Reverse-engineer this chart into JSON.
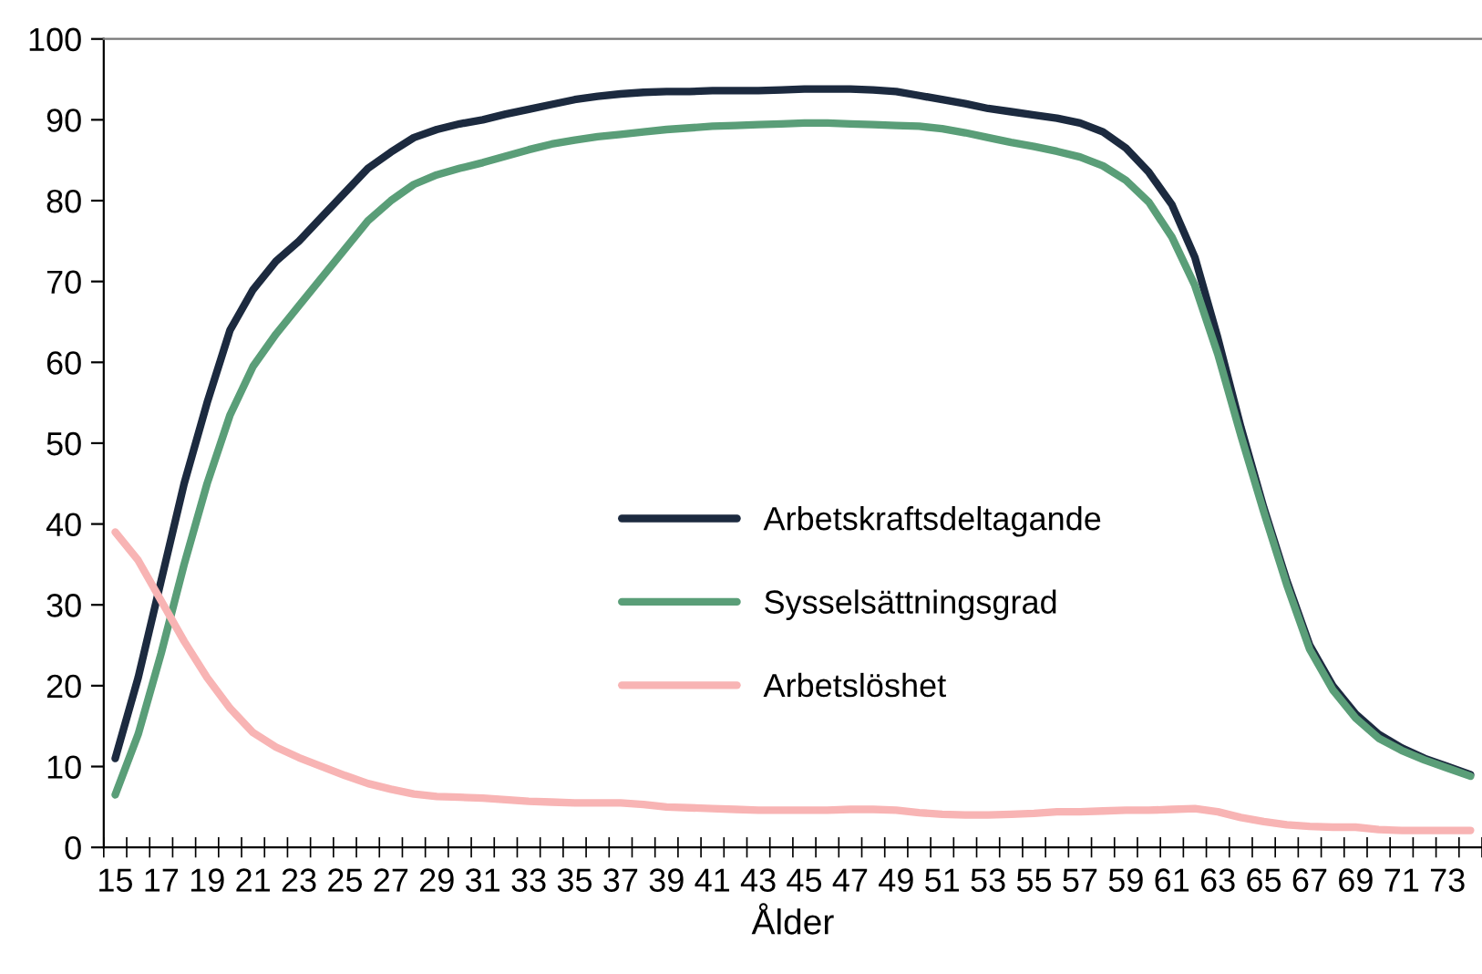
{
  "chart_data": {
    "type": "line",
    "xlabel": "Ålder",
    "categories": [
      "15",
      null,
      "17",
      null,
      "19",
      null,
      "21",
      null,
      "23",
      null,
      "25",
      null,
      "27",
      null,
      "29",
      null,
      "31",
      null,
      "33",
      null,
      "35",
      null,
      "37",
      null,
      "39",
      null,
      "41",
      null,
      "43",
      null,
      "45",
      null,
      "47",
      null,
      "49",
      null,
      "51",
      null,
      "53",
      null,
      "55",
      null,
      "57",
      null,
      "59",
      null,
      "61",
      null,
      "63",
      null,
      "65",
      null,
      "67",
      null,
      "69",
      null,
      "71",
      null,
      "73",
      null
    ],
    "series": [
      {
        "name": "Arbetskraftsdeltagande",
        "color": "#1c2a3f",
        "values": [
          11,
          21,
          33,
          45,
          55,
          64,
          69,
          72.5,
          75,
          78,
          81,
          84,
          86,
          87.8,
          88.8,
          89.5,
          90,
          90.7,
          91.3,
          91.9,
          92.5,
          92.9,
          93.2,
          93.4,
          93.5,
          93.5,
          93.6,
          93.6,
          93.6,
          93.7,
          93.8,
          93.8,
          93.8,
          93.7,
          93.5,
          93,
          92.5,
          92,
          91.4,
          91,
          90.6,
          90.2,
          89.6,
          88.5,
          86.5,
          83.5,
          79.5,
          73,
          63,
          52,
          42,
          33,
          25,
          20,
          16.5,
          14,
          12.3,
          11,
          10,
          9
        ]
      },
      {
        "name": "Sysselsättningsgrad",
        "color": "#5a9e78",
        "values": [
          6.5,
          14,
          24,
          35,
          45,
          53.5,
          59.5,
          63.5,
          67,
          70.5,
          74,
          77.5,
          80,
          82,
          83.2,
          84,
          84.7,
          85.5,
          86.3,
          87,
          87.5,
          87.9,
          88.2,
          88.5,
          88.8,
          89,
          89.2,
          89.3,
          89.4,
          89.5,
          89.6,
          89.6,
          89.5,
          89.4,
          89.3,
          89.2,
          88.9,
          88.4,
          87.8,
          87.2,
          86.7,
          86.1,
          85.4,
          84.3,
          82.5,
          79.8,
          75.5,
          69.5,
          61,
          51,
          41.5,
          32.5,
          24.5,
          19.5,
          16,
          13.5,
          12,
          10.8,
          9.8,
          8.8
        ]
      },
      {
        "name": "Arbetslöshet",
        "color": "#f8b4b4",
        "values": [
          39,
          35.5,
          30.5,
          25.5,
          21,
          17.2,
          14.2,
          12.4,
          11.1,
          10,
          8.9,
          7.9,
          7.2,
          6.6,
          6.3,
          6.2,
          6.1,
          5.9,
          5.7,
          5.6,
          5.5,
          5.5,
          5.5,
          5.3,
          5.0,
          4.9,
          4.8,
          4.7,
          4.6,
          4.6,
          4.6,
          4.6,
          4.7,
          4.7,
          4.6,
          4.3,
          4.1,
          4.0,
          4.0,
          4.1,
          4.2,
          4.4,
          4.4,
          4.5,
          4.6,
          4.6,
          4.7,
          4.8,
          4.4,
          3.7,
          3.2,
          2.8,
          2.6,
          2.5,
          2.5,
          2.2,
          2.1,
          2.1,
          2.1,
          2.1
        ]
      }
    ],
    "ylim": [
      0,
      100
    ],
    "yticks": [
      0,
      10,
      20,
      30,
      40,
      50,
      60,
      70,
      80,
      90,
      100
    ],
    "grid": false,
    "legend": "center",
    "marker": "none",
    "line_style": "solid"
  }
}
